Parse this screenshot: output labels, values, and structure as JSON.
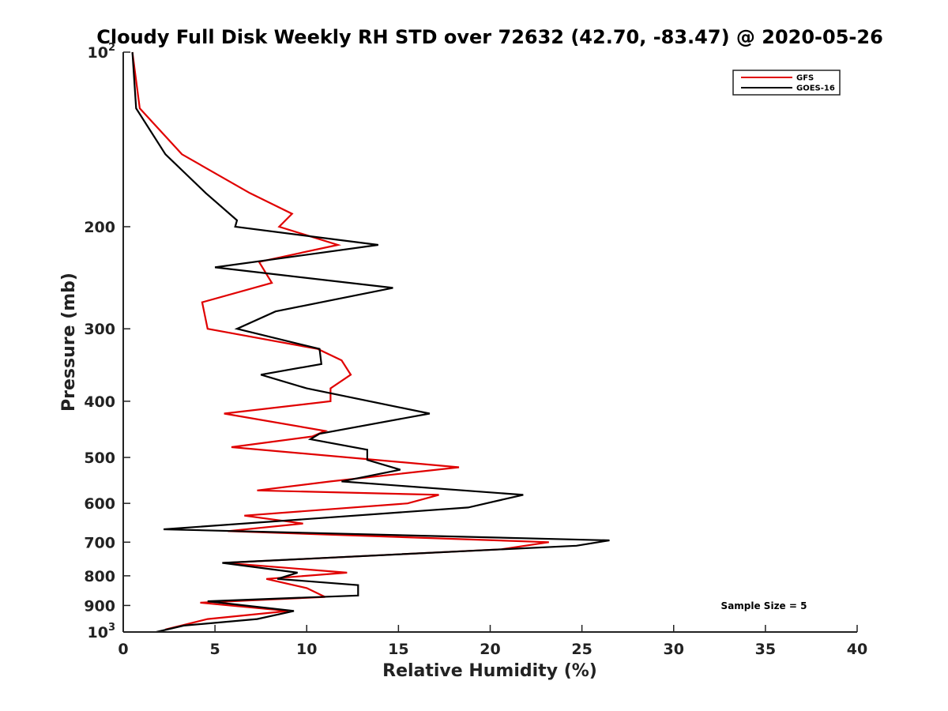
{
  "chart_data": {
    "type": "line",
    "title": "Cloudy Full Disk Weekly RH STD over 72632 (42.70, -83.47) @ 2020-05-26",
    "xlabel": "Relative Humidity (%)",
    "ylabel": "Pressure (mb)",
    "xlim": [
      0,
      40
    ],
    "ylim": [
      100,
      1000
    ],
    "yscale": "log",
    "y_reversed": true,
    "grid": false,
    "legend_position": "top-right",
    "x_ticks": [
      "0",
      "5",
      "10",
      "15",
      "20",
      "25",
      "30",
      "35",
      "40"
    ],
    "y_ticks": [
      {
        "value": 100,
        "base": "10",
        "exp": "2"
      },
      {
        "value": 200,
        "label": "200"
      },
      {
        "value": 300,
        "label": "300"
      },
      {
        "value": 400,
        "label": "400"
      },
      {
        "value": 500,
        "label": "500"
      },
      {
        "value": 600,
        "label": "600"
      },
      {
        "value": 700,
        "label": "700"
      },
      {
        "value": 800,
        "label": "800"
      },
      {
        "value": 900,
        "label": "900"
      },
      {
        "value": 1000,
        "base": "10",
        "exp": "3"
      }
    ],
    "annotation": "Sample Size = 5",
    "series": [
      {
        "name": "GFS",
        "color": "#e00000",
        "points": [
          [
            0.5,
            100
          ],
          [
            0.9,
            125
          ],
          [
            3.2,
            150
          ],
          [
            6.9,
            175
          ],
          [
            9.2,
            190
          ],
          [
            8.5,
            200
          ],
          [
            11.7,
            215
          ],
          [
            7.4,
            230
          ],
          [
            8.1,
            250
          ],
          [
            4.3,
            270
          ],
          [
            4.6,
            300
          ],
          [
            10.6,
            325
          ],
          [
            11.9,
            340
          ],
          [
            12.4,
            360
          ],
          [
            11.3,
            380
          ],
          [
            11.3,
            400
          ],
          [
            5.5,
            420
          ],
          [
            11.0,
            450
          ],
          [
            10.3,
            460
          ],
          [
            5.9,
            480
          ],
          [
            18.3,
            520
          ],
          [
            11.3,
            550
          ],
          [
            7.3,
            570
          ],
          [
            17.2,
            580
          ],
          [
            15.5,
            600
          ],
          [
            6.6,
            630
          ],
          [
            9.8,
            650
          ],
          [
            5.7,
            670
          ],
          [
            23.2,
            700
          ],
          [
            20.6,
            720
          ],
          [
            5.5,
            760
          ],
          [
            12.2,
            790
          ],
          [
            7.8,
            810
          ],
          [
            10.0,
            840
          ],
          [
            11.0,
            870
          ],
          [
            4.2,
            890
          ],
          [
            9.0,
            920
          ],
          [
            4.6,
            950
          ],
          [
            2.3,
            990
          ]
        ]
      },
      {
        "name": "GOES-16",
        "color": "#000000",
        "points": [
          [
            0.5,
            100
          ],
          [
            0.7,
            125
          ],
          [
            2.3,
            150
          ],
          [
            4.5,
            175
          ],
          [
            6.2,
            195
          ],
          [
            6.1,
            200
          ],
          [
            13.9,
            215
          ],
          [
            5.0,
            235
          ],
          [
            14.7,
            255
          ],
          [
            8.3,
            280
          ],
          [
            6.2,
            300
          ],
          [
            10.7,
            325
          ],
          [
            10.8,
            345
          ],
          [
            7.5,
            360
          ],
          [
            10.0,
            380
          ],
          [
            16.7,
            420
          ],
          [
            10.7,
            455
          ],
          [
            10.2,
            465
          ],
          [
            13.3,
            485
          ],
          [
            13.3,
            505
          ],
          [
            15.1,
            525
          ],
          [
            11.9,
            550
          ],
          [
            21.8,
            580
          ],
          [
            18.8,
            610
          ],
          [
            2.2,
            665
          ],
          [
            26.5,
            695
          ],
          [
            24.7,
            710
          ],
          [
            5.4,
            760
          ],
          [
            9.5,
            790
          ],
          [
            8.4,
            810
          ],
          [
            12.8,
            830
          ],
          [
            12.8,
            865
          ],
          [
            4.6,
            885
          ],
          [
            9.3,
            920
          ],
          [
            7.3,
            950
          ],
          [
            3.3,
            975
          ],
          [
            1.8,
            1000
          ]
        ]
      }
    ]
  }
}
